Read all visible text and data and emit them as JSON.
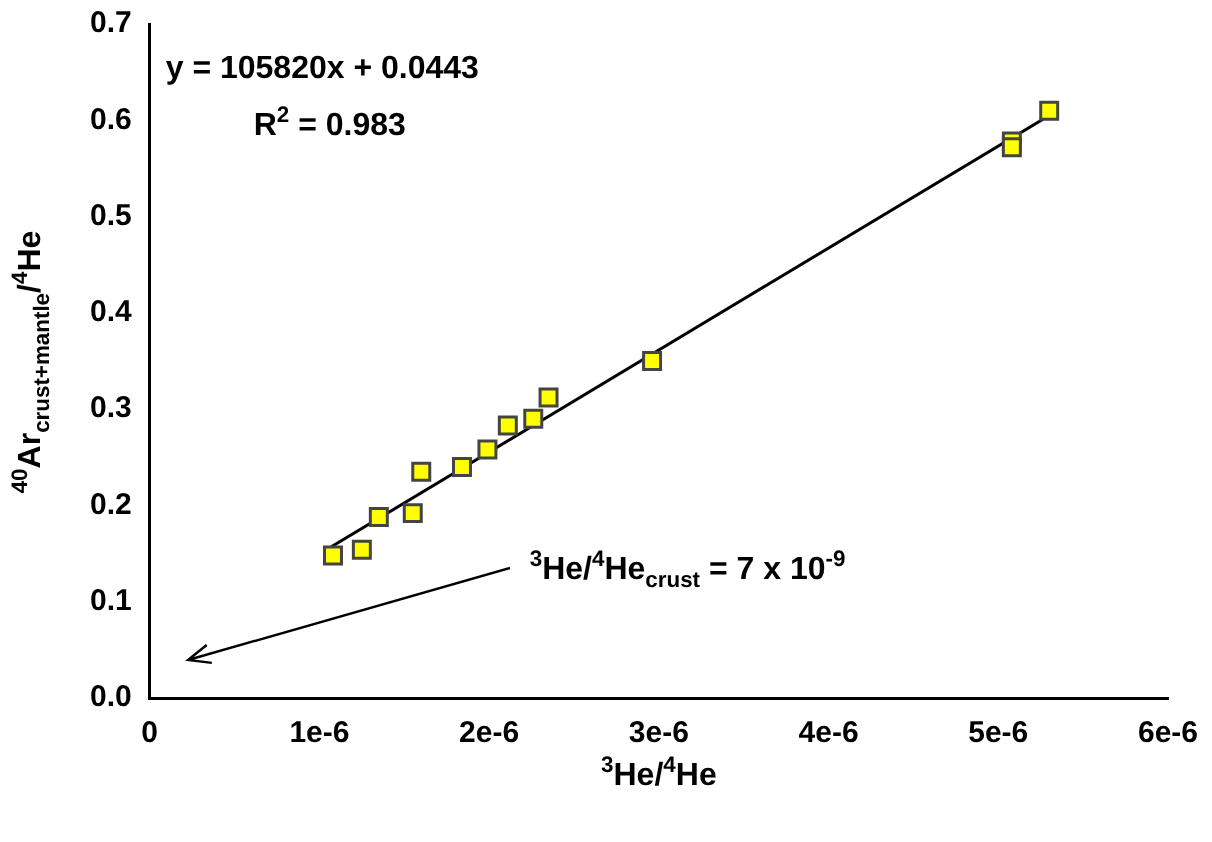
{
  "chart_data": {
    "type": "scatter",
    "xlabel": "$^{3}$He/$^{4}$He",
    "ylabel": "$^{40}$Ar$_{crust+mantle}$/$^{4}$He",
    "xlim": [
      0,
      6e-06
    ],
    "xticks": [
      0,
      {
        "value": 1e-06,
        "label": "1e-6"
      },
      {
        "value": 2e-06,
        "label": "2e-6"
      },
      {
        "value": 3e-06,
        "label": "3e-6"
      },
      {
        "value": 4e-06,
        "label": "4e-6"
      },
      {
        "value": 5e-06,
        "label": "5e-6"
      },
      {
        "value": 6e-06,
        "label": "6e-6"
      }
    ],
    "ylim": [
      0,
      0.7
    ],
    "yticks": [
      {
        "value": 0,
        "label": "0.0"
      },
      0.1,
      0.2,
      0.3,
      0.4,
      0.5,
      0.6,
      0.7
    ],
    "grid": false,
    "legend": false,
    "series": [
      {
        "marker": "square",
        "color": "#ffff00",
        "x": [
          1.08e-06,
          1.25e-06,
          1.35e-06,
          1.55e-06,
          1.6e-06,
          1.84e-06,
          1.99e-06,
          2.11e-06,
          2.26e-06,
          2.35e-06,
          2.96e-06,
          5.08e-06,
          5.08e-06,
          5.3e-06
        ],
        "values": [
          0.148,
          0.154,
          0.188,
          0.192,
          0.235,
          0.24,
          0.258,
          0.283,
          0.29,
          0.312,
          0.35,
          0.578,
          0.572,
          0.61
        ]
      },
      {
        "type": "line",
        "marker": "none",
        "color": "#000000",
        "x": [
          1.07e-06,
          5.3e-06
        ],
        "values": [
          0.157,
          0.605
        ]
      }
    ],
    "annotations": [
      "y = 105820x + 0.0443",
      "R$^{2}$ = 0.983",
      "$^{3}$He/$^{4}$He$_{crust}$ = 7 x 10$^{-9}$"
    ]
  }
}
